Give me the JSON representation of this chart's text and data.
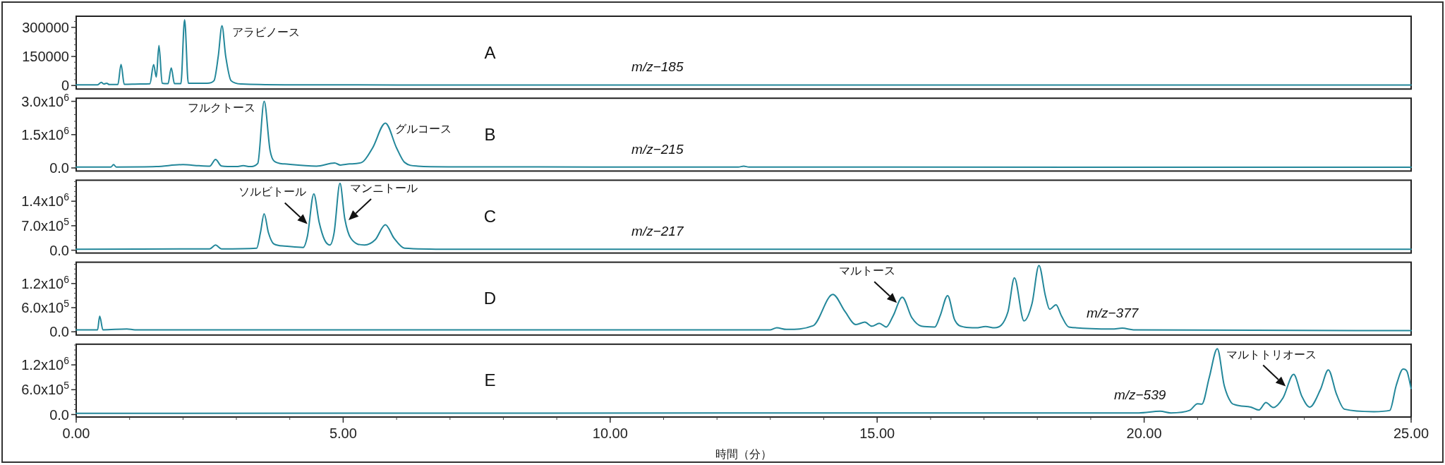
{
  "chart_data": [
    {
      "type": "line",
      "xlim": [
        0,
        25
      ],
      "ylim": [
        -18000,
        357000
      ],
      "yticks": [
        0,
        150000,
        300000
      ],
      "tick_labels": "y",
      "series": [
        {
          "color": "#23879a",
          "x": [
            0,
            0.4,
            0.47,
            0.52,
            0.57,
            0.62,
            0.78,
            0.84,
            0.9,
            1.2,
            1.38,
            1.45,
            1.5,
            1.55,
            1.61,
            1.72,
            1.78,
            1.84,
            1.96,
            2.03,
            2.1,
            2.45,
            2.58,
            2.66,
            2.73,
            2.8,
            2.9,
            3.1,
            4,
            8,
            25
          ],
          "values": [
            4000,
            4000,
            16000,
            8000,
            12000,
            5000,
            5000,
            109000,
            6000,
            8000,
            9000,
            108000,
            44000,
            206000,
            12000,
            10000,
            91000,
            10000,
            10000,
            339000,
            12000,
            12000,
            25000,
            150000,
            308000,
            150000,
            25000,
            8000,
            4000,
            3000,
            3000
          ]
        }
      ],
      "annotations": [
        "A",
        "m/z−185",
        {
          "text": "アラビノース",
          "x": 2.73,
          "y": 308000
        }
      ]
    },
    {
      "type": "line",
      "xlim": [
        0,
        25
      ],
      "ylim": [
        -140000,
        3140000
      ],
      "yticks": [
        {
          "value": 0,
          "label": "0.0"
        },
        {
          "value": 1500000,
          "label": "1.5x10$^{6}$"
        },
        {
          "value": 3000000,
          "label": "3.0x10$^{6}$"
        }
      ],
      "tick_labels": "y",
      "series": [
        {
          "color": "#23879a",
          "x": [
            0,
            0.65,
            0.7,
            0.75,
            1.5,
            2.0,
            2.3,
            2.5,
            2.61,
            2.72,
            3.0,
            3.13,
            3.25,
            3.4,
            3.52,
            3.63,
            3.71,
            3.9,
            4.5,
            4.84,
            4.95,
            5.12,
            5.35,
            5.55,
            5.79,
            6.0,
            6.15,
            6.4,
            7,
            12.4,
            12.5,
            12.6,
            25
          ],
          "values": [
            40000,
            40000,
            150000,
            40000,
            60000,
            150000,
            100000,
            80000,
            380000,
            90000,
            60000,
            100000,
            60000,
            200000,
            3000000,
            800000,
            300000,
            180000,
            80000,
            220000,
            130000,
            180000,
            250000,
            900000,
            2020000,
            900000,
            250000,
            80000,
            50000,
            40000,
            80000,
            40000,
            30000
          ]
        }
      ],
      "annotations": [
        "B",
        "m/z−215",
        {
          "text": "フルクトース",
          "x": 3.52,
          "y": 3000000
        },
        {
          "text": "グルコース",
          "x": 5.79,
          "y": 2020000
        }
      ]
    },
    {
      "type": "line",
      "xlim": [
        0,
        25
      ],
      "ylim": [
        -80000,
        2000000
      ],
      "yticks": [
        {
          "value": 0,
          "label": "0.0"
        },
        {
          "value": 700000,
          "label": "7.0x10$^{5}$"
        },
        {
          "value": 1400000,
          "label": "1.4x10$^{6}$"
        }
      ],
      "tick_labels": "y",
      "series": [
        {
          "color": "#23879a",
          "x": [
            0,
            2.5,
            2.61,
            2.72,
            3.38,
            3.45,
            3.52,
            3.6,
            3.7,
            3.9,
            4.25,
            4.33,
            4.45,
            4.55,
            4.65,
            4.75,
            4.83,
            4.94,
            5.03,
            5.14,
            5.4,
            5.6,
            5.79,
            5.95,
            6.15,
            7,
            25
          ],
          "values": [
            30000,
            40000,
            150000,
            40000,
            60000,
            500000,
            1040000,
            500000,
            180000,
            120000,
            80000,
            400000,
            1610000,
            800000,
            300000,
            150000,
            500000,
            1910000,
            900000,
            350000,
            150000,
            300000,
            730000,
            350000,
            60000,
            30000,
            30000
          ]
        }
      ],
      "annotations": [
        "C",
        "m/z−217",
        {
          "text": "ソルビトール",
          "x": 4.33,
          "y": 750000
        },
        {
          "text": "マンニトール",
          "x": 5.1,
          "y": 860000
        }
      ]
    },
    {
      "type": "line",
      "xlim": [
        0,
        25
      ],
      "ylim": [
        -80000,
        1730000
      ],
      "yticks": [
        {
          "value": 0,
          "label": "0.0"
        },
        {
          "value": 600000,
          "label": "6.0x10$^{5}$"
        },
        {
          "value": 1200000,
          "label": "1.2x10$^{6}$"
        }
      ],
      "tick_labels": "y",
      "series": [
        {
          "color": "#23879a",
          "x": [
            0,
            0.4,
            0.44,
            0.5,
            0.95,
            1.1,
            13.0,
            13.12,
            13.3,
            13.8,
            14.17,
            14.4,
            14.6,
            14.77,
            14.9,
            15.04,
            15.17,
            15.3,
            15.47,
            15.65,
            15.83,
            16.08,
            16.18,
            16.32,
            16.45,
            16.63,
            16.85,
            17.03,
            17.2,
            17.45,
            17.57,
            17.75,
            17.9,
            18.03,
            18.15,
            18.23,
            18.35,
            18.45,
            18.59,
            19.4,
            19.59,
            19.8,
            25
          ],
          "values": [
            50000,
            50000,
            390000,
            50000,
            70000,
            50000,
            50000,
            100000,
            60000,
            150000,
            930000,
            500000,
            180000,
            240000,
            140000,
            210000,
            120000,
            400000,
            860000,
            350000,
            140000,
            120000,
            400000,
            900000,
            300000,
            120000,
            100000,
            130000,
            100000,
            500000,
            1340000,
            270000,
            700000,
            1650000,
            900000,
            560000,
            670000,
            400000,
            120000,
            70000,
            90000,
            50000,
            30000
          ]
        }
      ],
      "annotations": [
        "D",
        "m/z−377",
        {
          "text": "マルトース",
          "x": 15.37,
          "y": 720000
        }
      ]
    },
    {
      "type": "line",
      "xlim": [
        0,
        25
      ],
      "ylim": [
        -60000,
        1700000
      ],
      "xticks": [
        {
          "value": 0,
          "label": "0.00"
        },
        {
          "value": 5,
          "label": "5.00"
        },
        {
          "value": 10,
          "label": "10.00"
        },
        {
          "value": 15,
          "label": "15.00"
        },
        {
          "value": 20,
          "label": "20.00"
        },
        {
          "value": 25,
          "label": "25.00"
        }
      ],
      "yticks": [
        {
          "value": 0,
          "label": "0.0"
        },
        {
          "value": 600000,
          "label": "6.0x10$^{5}$"
        },
        {
          "value": 1200000,
          "label": "1.2x10$^{6}$"
        }
      ],
      "xlabel": "時間（分）",
      "series": [
        {
          "color": "#23879a",
          "x": [
            0,
            19.9,
            20.3,
            20.5,
            20.85,
            21.0,
            21.08,
            21.22,
            21.37,
            21.5,
            21.63,
            21.72,
            22.0,
            22.15,
            22.28,
            22.42,
            22.6,
            22.8,
            22.95,
            23.1,
            23.3,
            23.45,
            23.6,
            23.75,
            24.3,
            24.6,
            24.72,
            24.85,
            24.92,
            25
          ],
          "values": [
            30000,
            40000,
            80000,
            40000,
            100000,
            260000,
            250000,
            900000,
            1590000,
            700000,
            290000,
            230000,
            180000,
            110000,
            290000,
            170000,
            400000,
            970000,
            450000,
            180000,
            600000,
            1080000,
            500000,
            130000,
            70000,
            100000,
            700000,
            1100000,
            1050000,
            630000
          ]
        }
      ],
      "annotations": [
        "E",
        "m/z−539",
        {
          "text": "マルトトリオース",
          "x": 22.65,
          "y": 680000
        }
      ]
    }
  ]
}
